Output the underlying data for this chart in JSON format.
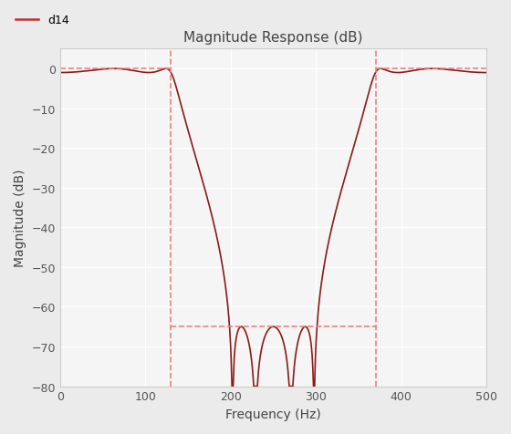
{
  "title": "Magnitude Response (dB)",
  "xlabel": "Frequency (Hz)",
  "ylabel": "Magnitude (dB)",
  "xlim": [
    0,
    500
  ],
  "ylim": [
    -80,
    5
  ],
  "yticks": [
    0,
    -10,
    -20,
    -30,
    -40,
    -50,
    -60,
    -70,
    -80
  ],
  "xticks": [
    0,
    100,
    200,
    300,
    400,
    500
  ],
  "fs": 1000,
  "passband_color": "#8B1A1A",
  "dashed_color": "#F08080",
  "legend_label": "d14",
  "legend_line_color": "#C03030",
  "bg_color": "#f5f5f5",
  "grid_color": "#ffffff",
  "stopband_low": 130,
  "stopband_high": 370,
  "stopband_atten": -65,
  "title_fontsize": 11,
  "label_fontsize": 10
}
